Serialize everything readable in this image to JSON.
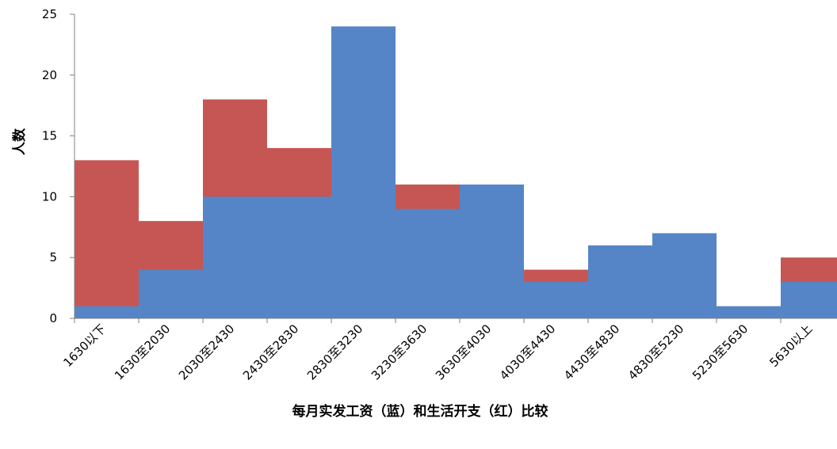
{
  "chart_data": {
    "type": "bar",
    "categories": [
      "1630以下",
      "1630至2030",
      "2030至2430",
      "2430至2830",
      "2830至3230",
      "3230至3630",
      "3630至4030",
      "4030至4430",
      "4430至4830",
      "4830至5230",
      "5230至5630",
      "5630以上"
    ],
    "series": [
      {
        "values": [
          1,
          4,
          10,
          10,
          24,
          9,
          11,
          3,
          6,
          7,
          1,
          3
        ]
      },
      {
        "values": [
          13,
          8,
          18,
          14,
          0,
          11,
          0,
          4,
          0,
          0,
          0,
          5
        ]
      }
    ],
    "xlabel": "每月实发工资（蓝）和生活开支（红）比较",
    "ylabel": "人数",
    "ylim": [
      0,
      25
    ],
    "yticks": [
      0,
      5,
      10,
      15,
      20,
      25
    ],
    "colors": {
      "blue": "#5585C6",
      "red": "#C65654"
    }
  }
}
